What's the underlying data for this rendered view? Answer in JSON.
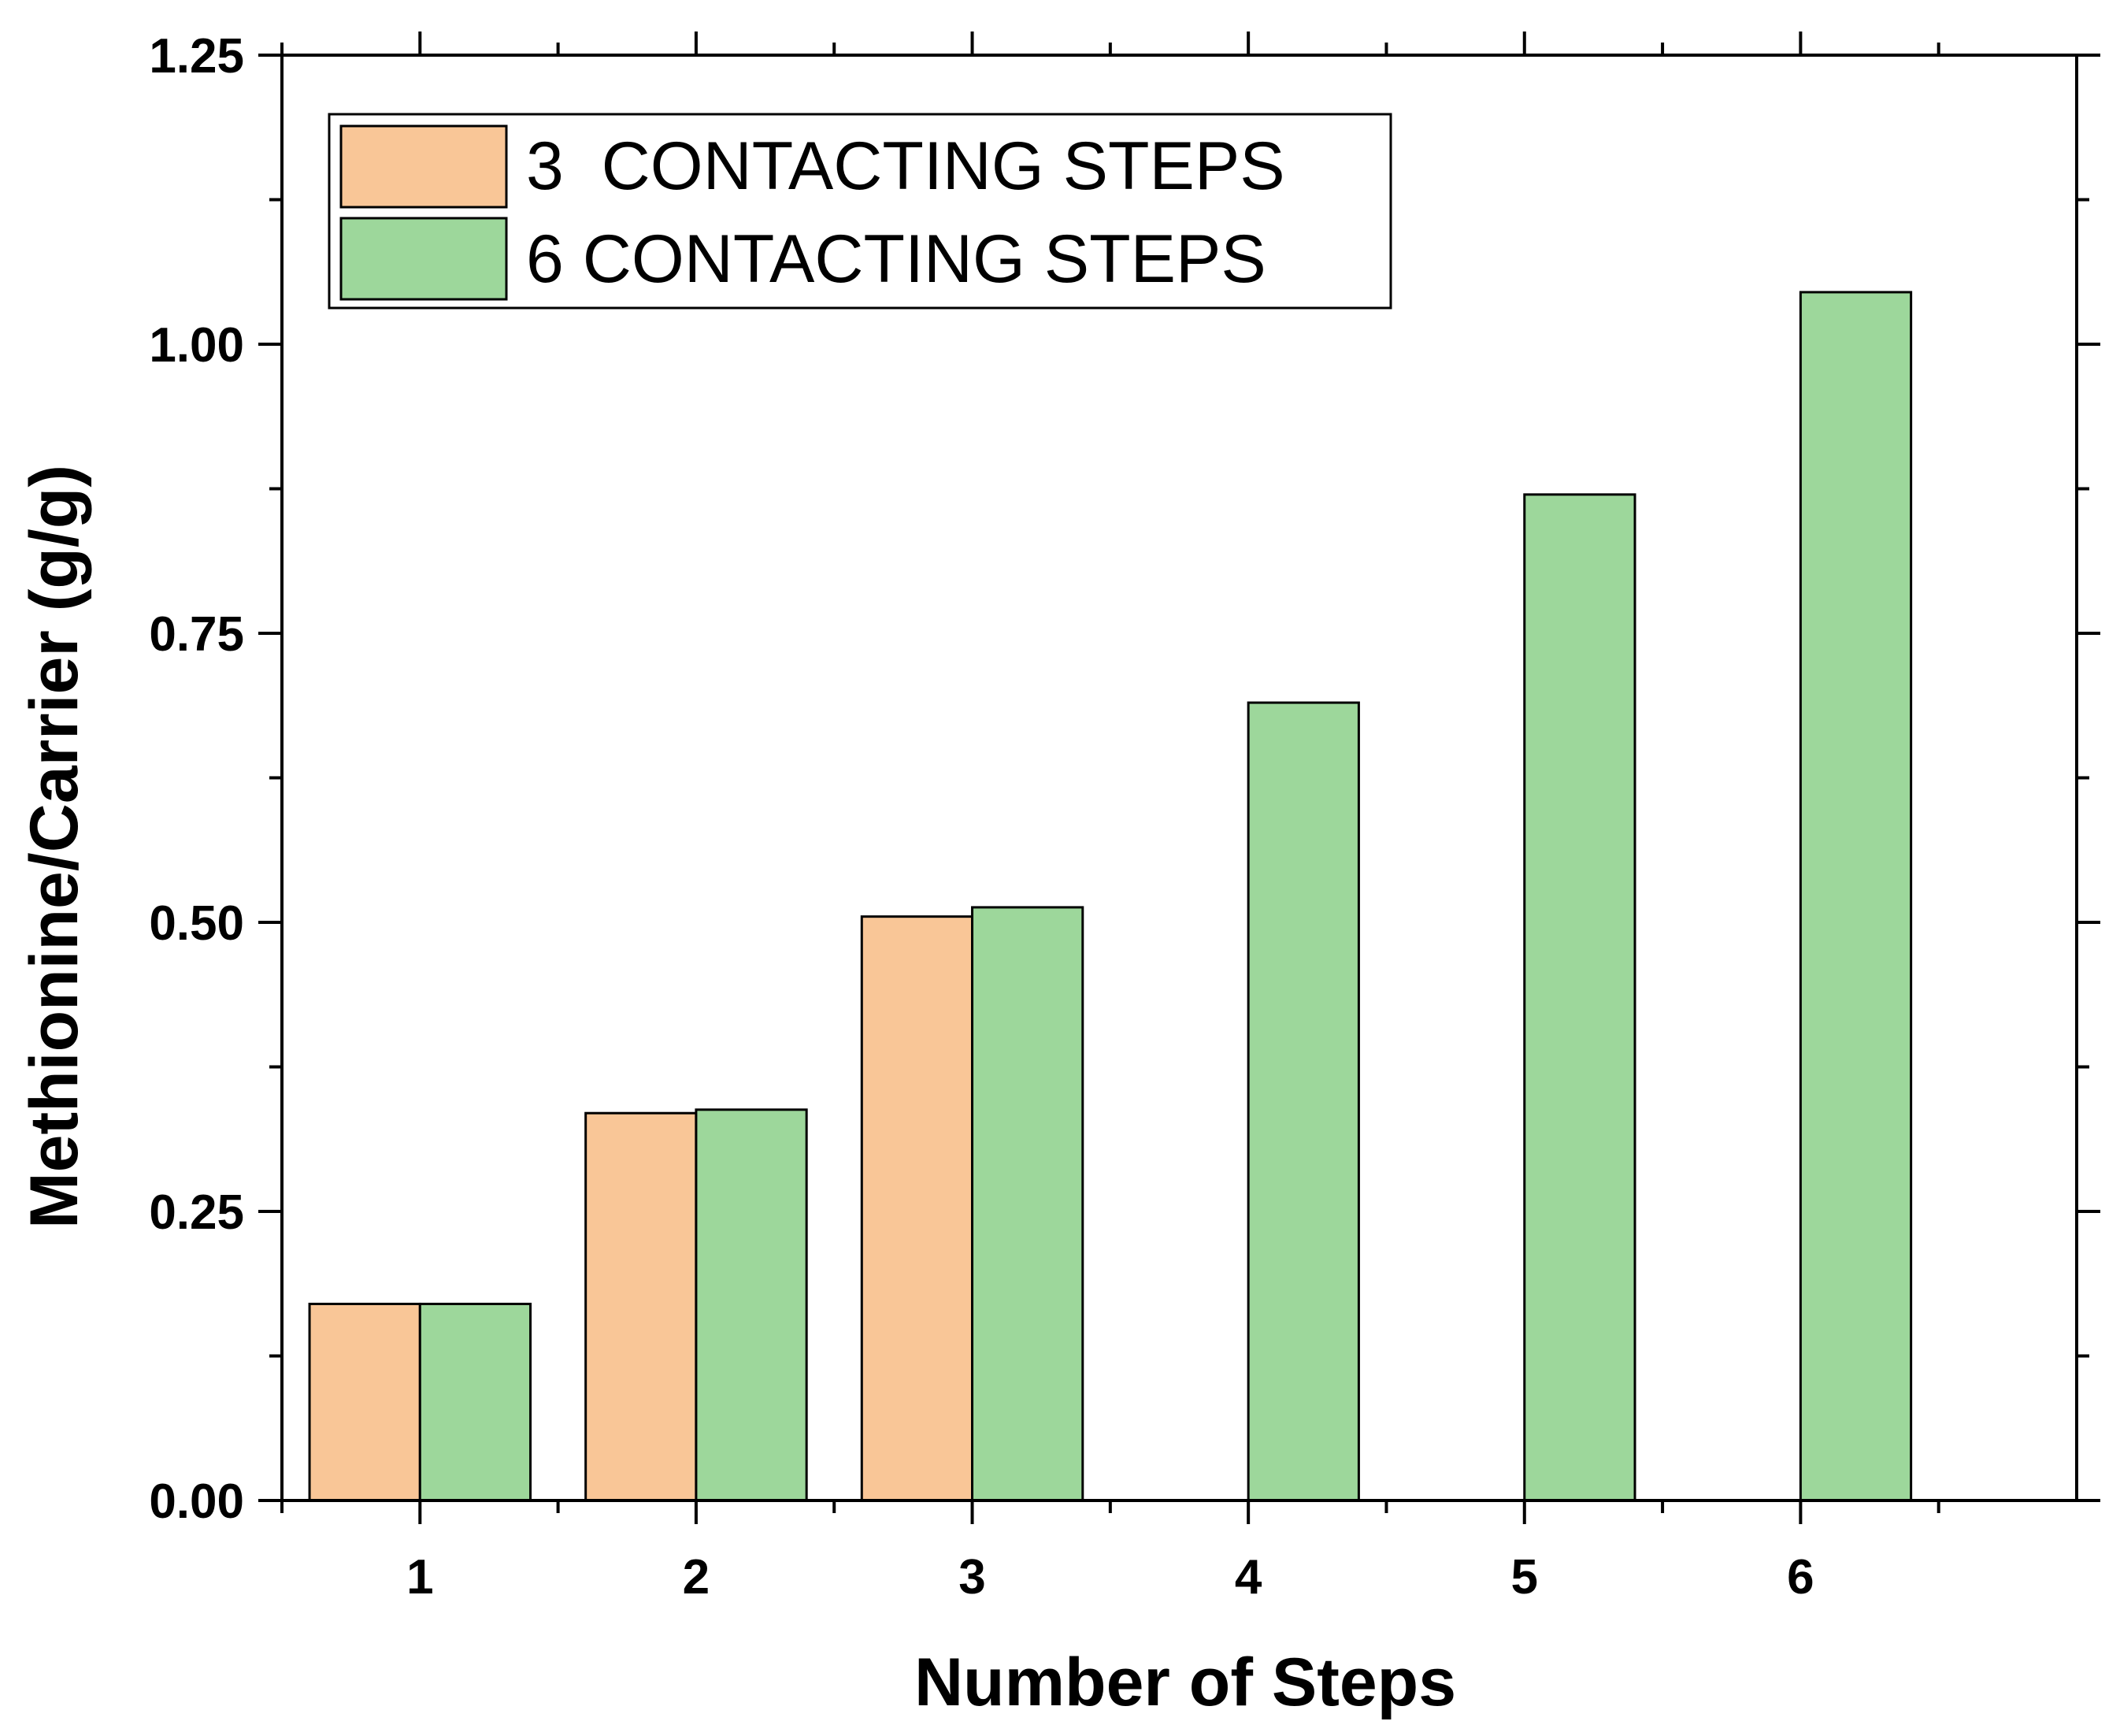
{
  "chart_data": {
    "type": "bar",
    "title": "",
    "xlabel": "Number of Steps",
    "ylabel": "Methionine/Carrier (g/g)",
    "categories": [
      "1",
      "2",
      "3",
      "4",
      "5",
      "6"
    ],
    "series": [
      {
        "name": "3  CONTACTING STEPS",
        "color": "#f9c697",
        "values": [
          0.17,
          0.335,
          0.505,
          null,
          null,
          null
        ]
      },
      {
        "name": "6 CONTACTING STEPS",
        "color": "#9dd79b",
        "values": [
          0.17,
          0.338,
          0.513,
          0.69,
          0.87,
          1.045
        ]
      }
    ],
    "ylim": [
      0,
      1.25
    ],
    "xlim": [
      0.5,
      7
    ],
    "yticks": [
      "0.00",
      "0.25",
      "0.50",
      "0.75",
      "1.00",
      "1.25"
    ],
    "grid": false,
    "legend_position": "top-left"
  }
}
